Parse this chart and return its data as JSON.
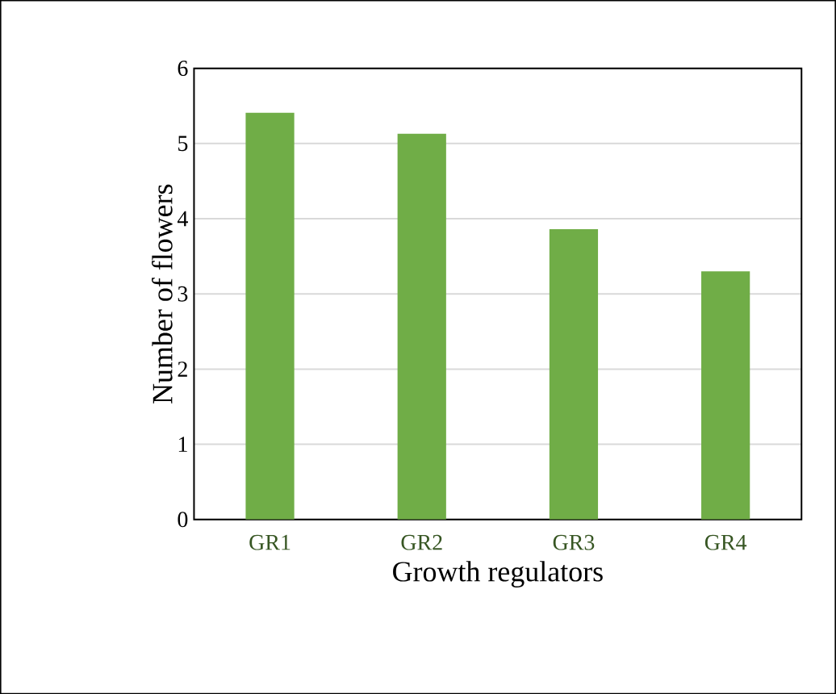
{
  "chart_data": {
    "type": "bar",
    "xlabel": "Growth regulators",
    "ylabel": "Number of flowers",
    "categories": [
      "GR1",
      "GR2",
      "GR3",
      "GR4"
    ],
    "values": [
      5.41,
      5.13,
      3.86,
      3.3
    ],
    "color": "#70ad47",
    "ylim": [
      0,
      6
    ],
    "yticks": [
      0,
      1,
      2,
      3,
      4,
      5,
      6
    ],
    "grid": "y"
  }
}
